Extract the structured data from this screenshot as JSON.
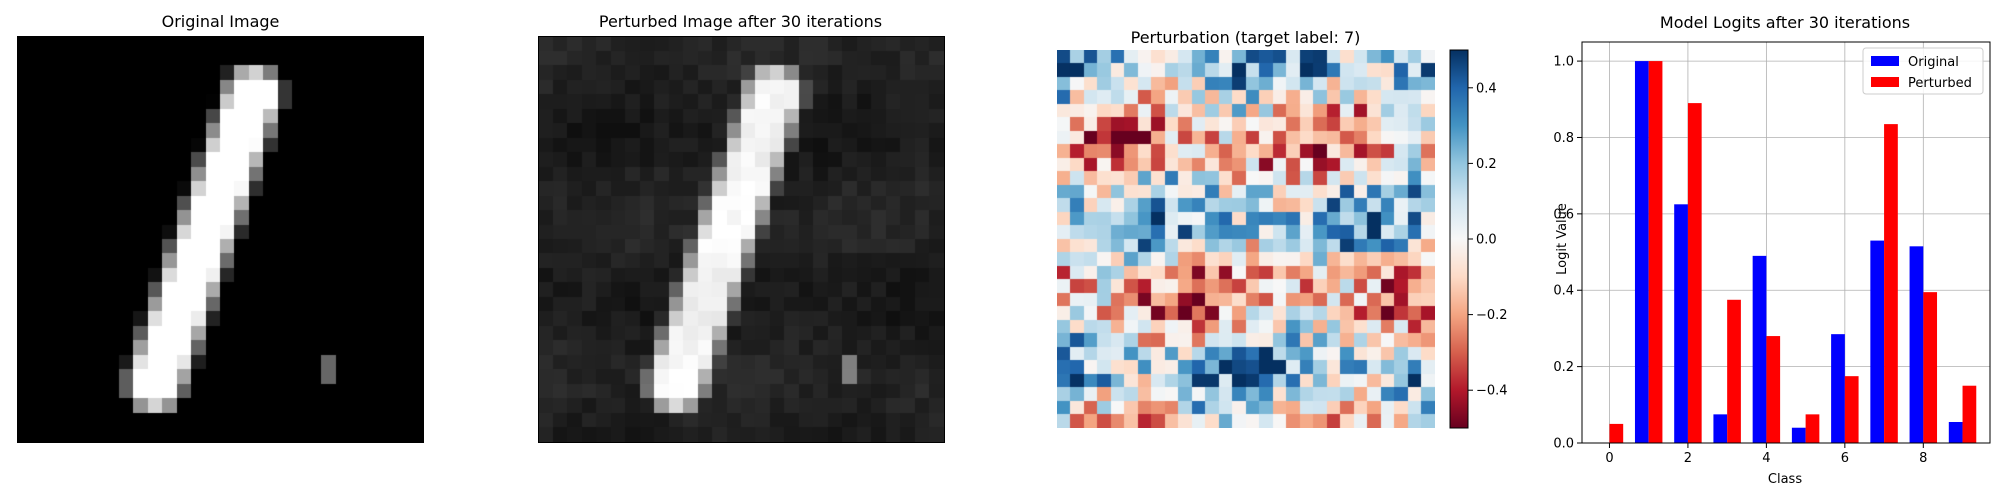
{
  "panels": {
    "original_title": "Original Image",
    "perturbed_title": "Perturbed Image after 30 iterations",
    "perturbation_title": "Perturbation (target label: 7)"
  },
  "colorbar": {
    "ticks": [
      "0.4",
      "0.2",
      "0.0",
      "−0.2",
      "−0.4"
    ],
    "tick_values": [
      0.4,
      0.2,
      0.0,
      -0.2,
      -0.4
    ],
    "vmin": -0.5,
    "vmax": 0.5
  },
  "chart_data": {
    "type": "bar",
    "title": "Model Logits after 30 iterations",
    "xlabel": "Class",
    "ylabel": "Logit Value",
    "categories": [
      0,
      1,
      2,
      3,
      4,
      5,
      6,
      7,
      8,
      9
    ],
    "x_ticks": [
      "0",
      "2",
      "4",
      "6",
      "8"
    ],
    "x_tick_values": [
      0,
      2,
      4,
      6,
      8
    ],
    "y_ticks": [
      "0.0",
      "0.2",
      "0.4",
      "0.6",
      "0.8",
      "1.0"
    ],
    "y_tick_values": [
      0.0,
      0.2,
      0.4,
      0.6,
      0.8,
      1.0
    ],
    "ylim": [
      0,
      1.05
    ],
    "xlim": [
      -0.7,
      9.7
    ],
    "grid": true,
    "legend_position": "top-right",
    "series": [
      {
        "name": "Original",
        "color": "#0000ff",
        "values": [
          0.0,
          1.0,
          0.625,
          0.075,
          0.49,
          0.04,
          0.285,
          0.53,
          0.515,
          0.055
        ]
      },
      {
        "name": "Perturbed",
        "color": "#ff0000",
        "values": [
          0.05,
          1.0,
          0.89,
          0.375,
          0.28,
          0.075,
          0.175,
          0.835,
          0.395,
          0.15
        ]
      }
    ]
  }
}
